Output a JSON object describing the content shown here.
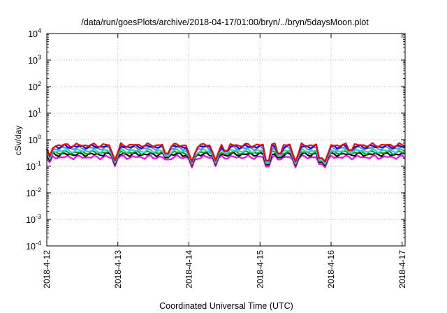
{
  "chart_data": {
    "type": "line",
    "title": "/data/run/goesPlots/archive/2018-04-17/01:00/bryn/../bryn/5daysMoon.plot",
    "xlabel": "Coordinated Universal Time (UTC)",
    "ylabel": "cSv/day",
    "y_scale": "log",
    "ylim": [
      0.0001,
      10000
    ],
    "y_ticks": [
      {
        "base": "10",
        "exp": "-4"
      },
      {
        "base": "10",
        "exp": "-3"
      },
      {
        "base": "10",
        "exp": "-2"
      },
      {
        "base": "10",
        "exp": "-1"
      },
      {
        "base": "10",
        "exp": "0"
      },
      {
        "base": "10",
        "exp": "1"
      },
      {
        "base": "10",
        "exp": "2"
      },
      {
        "base": "10",
        "exp": "3"
      },
      {
        "base": "10",
        "exp": "4"
      }
    ],
    "x_ticks": [
      "2018-4-12",
      "2018-4-13",
      "2018-4-14",
      "2018-4-15",
      "2018-4-16",
      "2018-4-17"
    ],
    "xlim": [
      "2018-04-12T00:00",
      "2018-04-17T01:00"
    ],
    "grid": true,
    "legend": "none",
    "series": [
      {
        "color": "#ff0000",
        "baseline": 0.62
      },
      {
        "color": "#0000ff",
        "baseline": 0.55
      },
      {
        "color": "#3399ff",
        "baseline": 0.48
      },
      {
        "color": "#33cccc",
        "baseline": 0.38
      },
      {
        "color": "#00aa00",
        "baseline": 0.33
      },
      {
        "color": "#000000",
        "baseline": 0.28
      },
      {
        "color": "#ff00ff",
        "baseline": 0.22
      }
    ],
    "dips": [
      {
        "x": "2018-04-12T01:00",
        "value": 0.14
      },
      {
        "x": "2018-04-12T23:00",
        "value": 0.1
      },
      {
        "x": "2018-04-13T16:30",
        "value": 0.12
      },
      {
        "x": "2018-04-14T01:00",
        "value": 0.09
      },
      {
        "x": "2018-04-14T09:00",
        "value": 0.1
      },
      {
        "x": "2018-04-14T12:30",
        "value": 0.15
      },
      {
        "x": "2018-04-15T02:30",
        "value": 0.065
      },
      {
        "x": "2018-04-15T06:30",
        "value": 0.12
      },
      {
        "x": "2018-04-15T12:00",
        "value": 0.09
      },
      {
        "x": "2018-04-15T20:30",
        "value": 0.08
      },
      {
        "x": "2018-04-15T22:00",
        "value": 0.09
      },
      {
        "x": "2018-04-16T06:30",
        "value": 0.16
      }
    ]
  }
}
